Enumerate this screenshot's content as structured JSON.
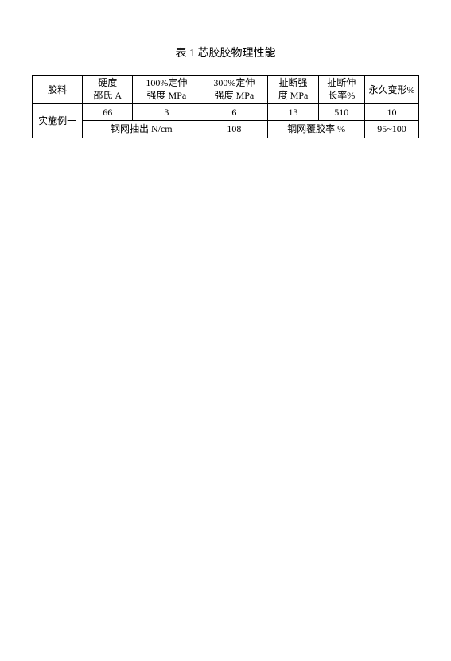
{
  "caption": "表 1 芯胶胶物理性能",
  "headers": {
    "c0": "胶料",
    "c1_line1": "硬度",
    "c1_line2": "邵氏 A",
    "c2_line1": "100%定伸",
    "c2_line2": "强度 MPa",
    "c3_line1": "300%定伸",
    "c3_line2": "强度 MPa",
    "c4_line1": "扯断强",
    "c4_line2": "度 MPa",
    "c5_line1": "扯断伸",
    "c5_line2": "长率%",
    "c6": "永久变形%"
  },
  "rows": {
    "name": "实施例一",
    "r2": {
      "v1": "66",
      "v2": "3",
      "v3": "6",
      "v4": "13",
      "v5": "510",
      "v6": "10"
    },
    "r3": {
      "label1": "钢网抽出 N/cm",
      "val1": "108",
      "label2": "钢网覆胶率  %",
      "val2": "95~100"
    }
  },
  "styling": {
    "font_family": "SimSun",
    "font_size_caption": 14,
    "font_size_cell": 12,
    "text_color": "#000000",
    "border_color": "#000000",
    "background_color": "#ffffff",
    "col_widths_pct": [
      13,
      13,
      17.5,
      17.5,
      13,
      12,
      14
    ]
  }
}
